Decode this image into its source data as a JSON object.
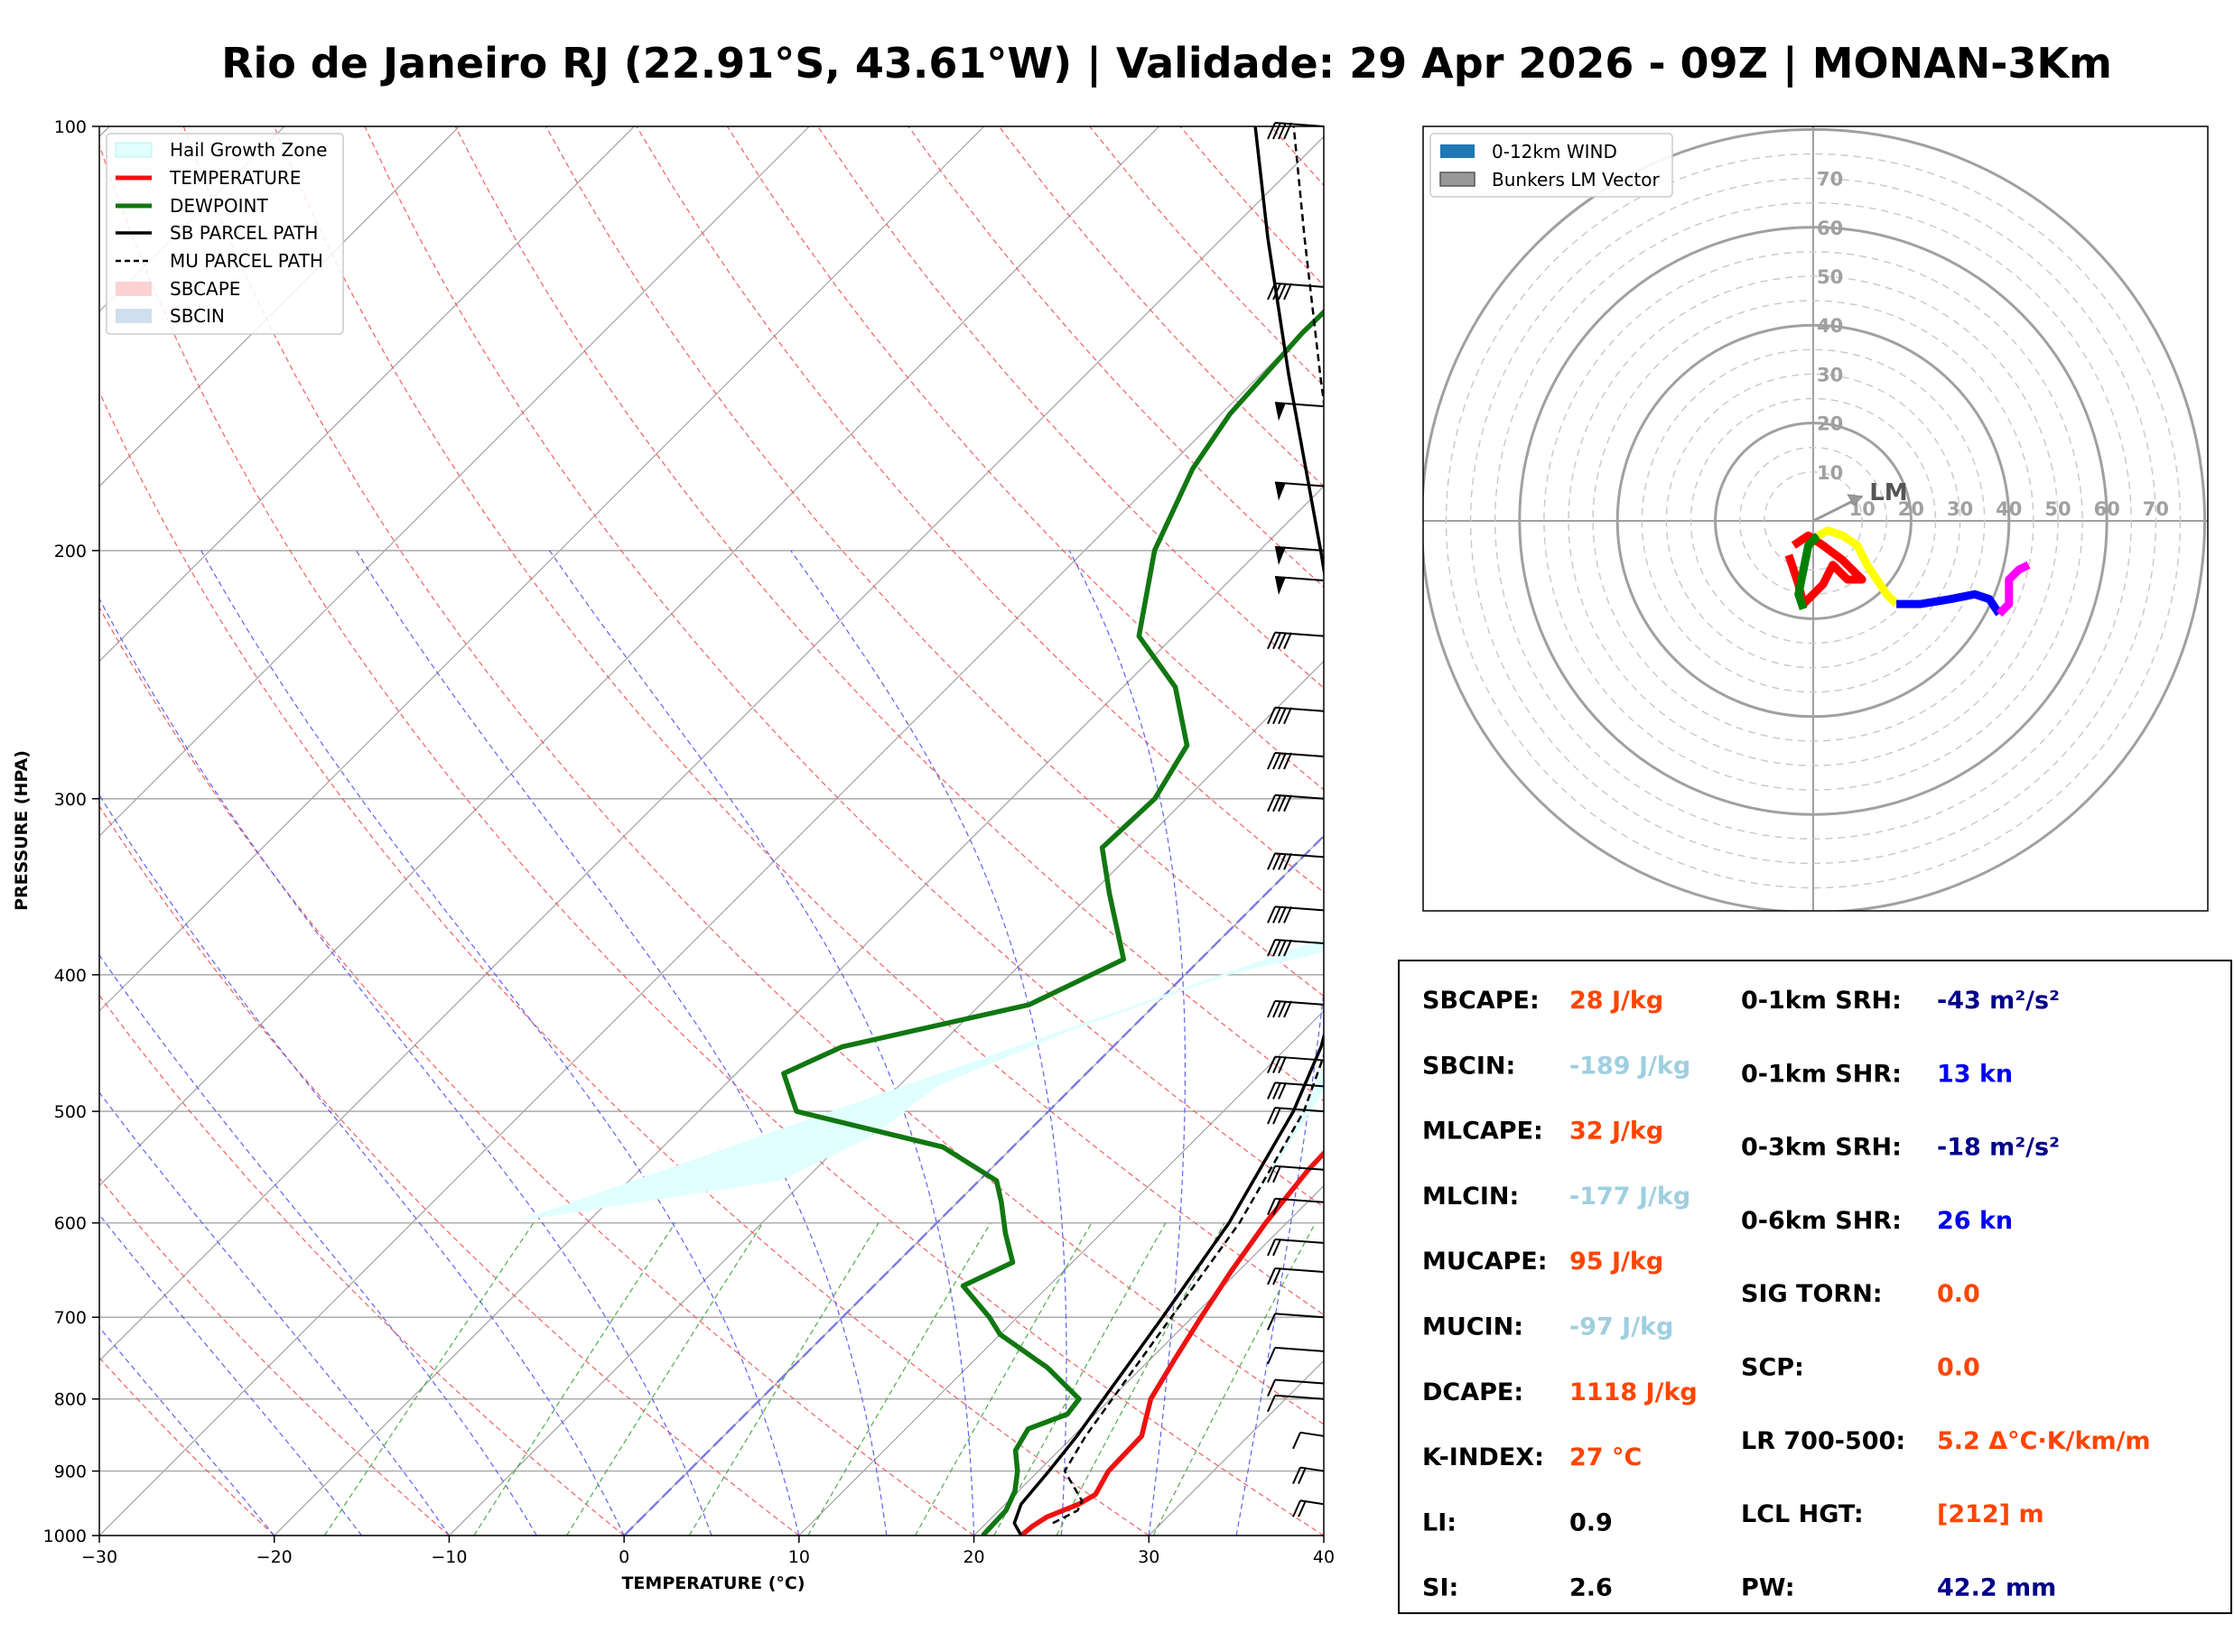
{
  "title": "Rio de Janeiro RJ (22.91°S, 43.61°W) | Validade: 29 Apr 2026 - 09Z | MONAN-3Km",
  "colors": {
    "temperature": "#ee1111",
    "dewpoint": "#117711",
    "parcel": "#000000",
    "hail": "#e0ffff",
    "index_red": "#ff4500",
    "index_lightblue": "#9fcfe0",
    "index_navy": "#00008b",
    "index_blue": "#0000ee",
    "hodo_red": "#ff0000",
    "hodo_green": "#008000",
    "hodo_yellow": "#ffff00",
    "hodo_blue": "#0000ff",
    "hodo_magenta": "#ff00ff"
  },
  "chart_data": [
    {
      "type": "line",
      "subtype": "skew-t log-p",
      "xlabel": "TEMPERATURE (°C)",
      "ylabel": "PRESSURE (HPA)",
      "xlim": [
        -30,
        40
      ],
      "ylim": [
        1000,
        100
      ],
      "y_scale": "log",
      "grid": true,
      "legend_position": "top-left",
      "x_ticks": [
        "−30",
        "−20",
        "−10",
        "0",
        "10",
        "20",
        "30",
        "40"
      ],
      "y_ticks": [
        "100",
        "200",
        "300",
        "400",
        "500",
        "600",
        "700",
        "800",
        "900",
        "1000"
      ],
      "legend": [
        "Hail Growth Zone",
        "TEMPERATURE",
        "DEWPOINT",
        "SB PARCEL PATH",
        "MU PARCEL PATH",
        "SBCAPE",
        "SBCIN"
      ],
      "series": [
        {
          "name": "TEMPERATURE",
          "points": [
            [
              1000,
              22.7
            ],
            [
              985,
              22.8
            ],
            [
              970,
              23.1
            ],
            [
              950,
              24.2
            ],
            [
              935,
              24.6
            ],
            [
              900,
              24.0
            ],
            [
              850,
              23.9
            ],
            [
              800,
              22.3
            ],
            [
              750,
              21.4
            ],
            [
              700,
              20.5
            ],
            [
              650,
              19.6
            ],
            [
              600,
              18.8
            ],
            [
              550,
              18.2
            ],
            [
              500,
              18.0
            ],
            [
              470,
              17.2
            ],
            [
              450,
              16.0
            ],
            [
              420,
              14.2
            ],
            [
              400,
              13.0
            ],
            [
              350,
              10.0
            ],
            [
              300,
              5.2
            ],
            [
              260,
              0.2
            ],
            [
              230,
              -3.5
            ],
            [
              200,
              -7.0
            ],
            [
              180,
              -10.0
            ],
            [
              160,
              -12.7
            ],
            [
              150,
              -13.8
            ],
            [
              135,
              -13.5
            ],
            [
              120,
              -11.0
            ],
            [
              100,
              -6.0
            ]
          ]
        },
        {
          "name": "DEWPOINT",
          "points": [
            [
              1000,
              20.5
            ],
            [
              960,
              20.4
            ],
            [
              930,
              19.8
            ],
            [
              900,
              18.8
            ],
            [
              870,
              17.5
            ],
            [
              840,
              17.0
            ],
            [
              820,
              18.4
            ],
            [
              800,
              18.2
            ],
            [
              760,
              14.6
            ],
            [
              720,
              10.0
            ],
            [
              700,
              8.4
            ],
            [
              665,
              5.1
            ],
            [
              640,
              6.6
            ],
            [
              610,
              4.5
            ],
            [
              580,
              2.5
            ],
            [
              560,
              1.0
            ],
            [
              530,
              -4.0
            ],
            [
              500,
              -14.4
            ],
            [
              470,
              -17.3
            ],
            [
              450,
              -15.5
            ],
            [
              420,
              -7.2
            ],
            [
              390,
              -4.4
            ],
            [
              350,
              -9.0
            ],
            [
              325,
              -12.0
            ],
            [
              300,
              -11.8
            ],
            [
              275,
              -13.0
            ],
            [
              250,
              -17.0
            ],
            [
              230,
              -22.0
            ],
            [
              200,
              -26.0
            ],
            [
              175,
              -28.5
            ],
            [
              160,
              -29.5
            ],
            [
              140,
              -30.0
            ],
            [
              120,
              -29.8
            ],
            [
              100,
              -29.8
            ]
          ]
        },
        {
          "name": "SB PARCEL PATH",
          "points": [
            [
              1000,
              22.7
            ],
            [
              980,
              21.6
            ],
            [
              950,
              20.9
            ],
            [
              900,
              20.6
            ],
            [
              850,
              20.2
            ],
            [
              800,
              19.6
            ],
            [
              700,
              18.3
            ],
            [
              600,
              16.7
            ],
            [
              500,
              14.0
            ],
            [
              450,
              11.9
            ],
            [
              400,
              8.9
            ],
            [
              350,
              4.8
            ],
            [
              300,
              -0.5
            ],
            [
              250,
              -7.4
            ],
            [
              200,
              -16.5
            ],
            [
              150,
              -28.4
            ],
            [
              120,
              -37.4
            ],
            [
              100,
              -44.5
            ]
          ]
        },
        {
          "name": "MU PARCEL PATH",
          "points": [
            [
              980,
              23.8
            ],
            [
              960,
              24.5
            ],
            [
              945,
              24.2
            ],
            [
              900,
              21.5
            ],
            [
              850,
              20.7
            ],
            [
              800,
              20.1
            ],
            [
              700,
              18.8
            ],
            [
              600,
              17.3
            ],
            [
              500,
              14.6
            ],
            [
              400,
              9.6
            ],
            [
              300,
              0.3
            ],
            [
              250,
              -6.4
            ],
            [
              200,
              -15.2
            ],
            [
              150,
              -26.6
            ],
            [
              120,
              -35.3
            ],
            [
              100,
              -42.3
            ]
          ]
        }
      ],
      "hail_growth_zone": [
        [
          598,
          -24.0
        ],
        [
          560,
          -11.4
        ],
        [
          520,
          -8.6
        ],
        [
          480,
          -7.8
        ],
        [
          440,
          -3.6
        ],
        [
          400,
          2.5
        ],
        [
          370,
          11.2
        ]
      ],
      "wind_barbs_side": "right"
    },
    {
      "type": "line",
      "subtype": "hodograph",
      "legend": [
        "0-12km WIND",
        "Bunkers LM Vector"
      ],
      "legend_position": "top-left",
      "ring_labels": [
        "10",
        "20",
        "30",
        "40",
        "50",
        "60",
        "70"
      ],
      "annotation": "LM",
      "bunkers_lm": [
        10,
        5
      ],
      "segments": [
        {
          "color": "red",
          "points": [
            [
              -5,
              -7
            ],
            [
              -3,
              -13
            ],
            [
              -2,
              -17
            ],
            [
              2,
              -13
            ],
            [
              4,
              -9
            ],
            [
              7,
              -12
            ],
            [
              10,
              -12
            ],
            [
              6,
              -8
            ],
            [
              2,
              -5
            ],
            [
              -1,
              -3
            ],
            [
              -4,
              -5
            ]
          ]
        },
        {
          "color": "green",
          "points": [
            [
              -2,
              -18
            ],
            [
              -3,
              -15
            ],
            [
              -2,
              -10
            ],
            [
              -1,
              -5
            ],
            [
              1,
              -3
            ]
          ]
        },
        {
          "color": "yellow",
          "points": [
            [
              1,
              -3
            ],
            [
              3,
              -2
            ],
            [
              6,
              -3
            ],
            [
              9,
              -5
            ],
            [
              11,
              -9
            ],
            [
              13,
              -12
            ],
            [
              15,
              -15
            ],
            [
              17,
              -17
            ]
          ]
        },
        {
          "color": "blue",
          "points": [
            [
              17,
              -17
            ],
            [
              22,
              -17
            ],
            [
              28,
              -16
            ],
            [
              33,
              -15
            ],
            [
              36,
              -16
            ],
            [
              38,
              -19
            ]
          ]
        },
        {
          "color": "magenta",
          "points": [
            [
              38,
              -19
            ],
            [
              40,
              -17
            ],
            [
              40,
              -12
            ],
            [
              42,
              -10
            ],
            [
              44,
              -9
            ]
          ]
        }
      ]
    }
  ],
  "indices": {
    "left": [
      {
        "label": "SBCAPE:",
        "value": "28 J/kg",
        "color": "index_red"
      },
      {
        "label": "SBCIN:",
        "value": "-189 J/kg",
        "color": "index_lightblue"
      },
      {
        "label": "MLCAPE:",
        "value": "32 J/kg",
        "color": "index_red"
      },
      {
        "label": "MLCIN:",
        "value": "-177 J/kg",
        "color": "index_lightblue"
      },
      {
        "label": "MUCAPE:",
        "value": "95 J/kg",
        "color": "index_red"
      },
      {
        "label": "MUCIN:",
        "value": "-97 J/kg",
        "color": "index_lightblue"
      },
      {
        "label": "DCAPE:",
        "value": "1118 J/kg",
        "color": "index_red"
      },
      {
        "label": "K-INDEX:",
        "value": "27 °C",
        "color": "index_red"
      },
      {
        "label": "LI:",
        "value": "0.9",
        "color": "black"
      },
      {
        "label": "SI:",
        "value": "2.6",
        "color": "black"
      }
    ],
    "right": [
      {
        "label": "0-1km SRH:",
        "value": "-43 m²/s²",
        "color": "index_navy"
      },
      {
        "label": "0-1km SHR:",
        "value": "13 kn",
        "color": "index_blue"
      },
      {
        "label": "0-3km SRH:",
        "value": "-18 m²/s²",
        "color": "index_navy"
      },
      {
        "label": "0-6km SHR:",
        "value": "26 kn",
        "color": "index_blue"
      },
      {
        "label": "SIG TORN:",
        "value": "0.0",
        "color": "index_red"
      },
      {
        "label": "SCP:",
        "value": "0.0",
        "color": "index_red"
      },
      {
        "label": "LR 700-500:",
        "value": "5.2 Δ°C·K/km/m",
        "color": "index_red"
      },
      {
        "label": "LCL HGT:",
        "value": "[212] m",
        "color": "index_red"
      },
      {
        "label": "PW:",
        "value": "42.2 mm",
        "color": "index_navy"
      }
    ]
  }
}
